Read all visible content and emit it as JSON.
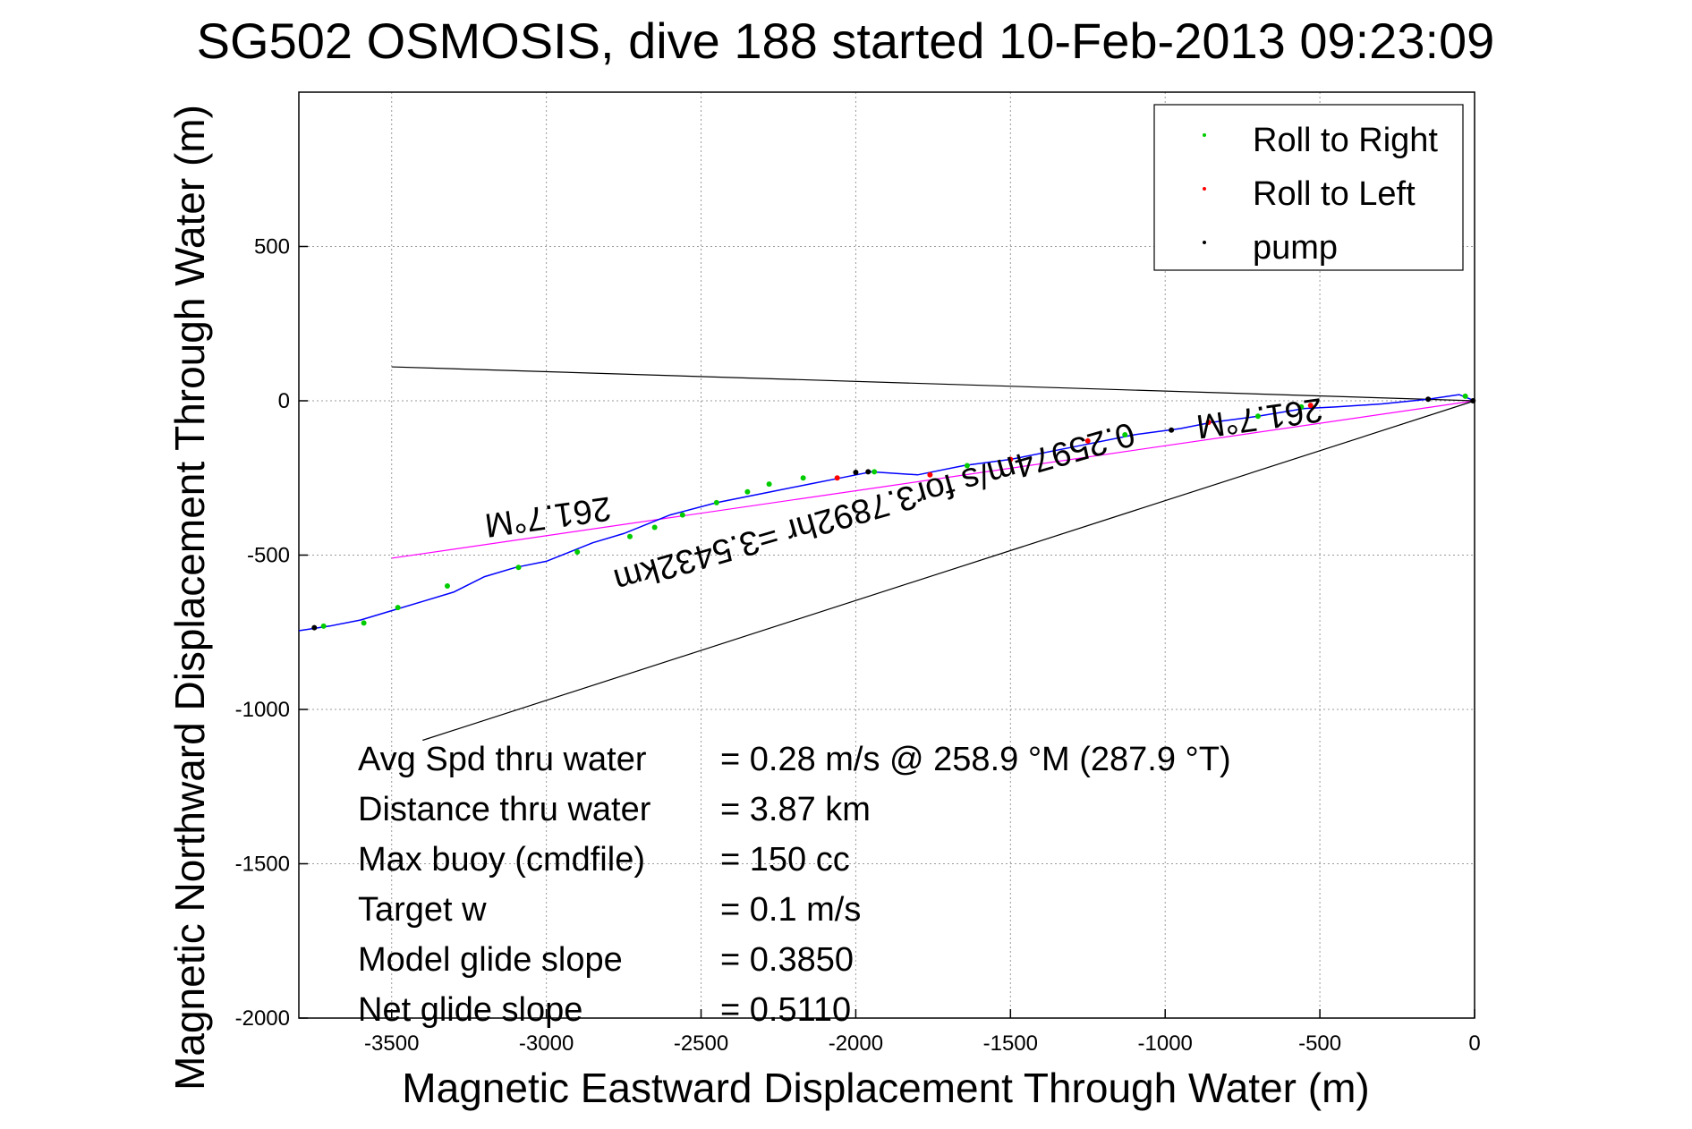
{
  "chart_data": {
    "type": "line",
    "title": "SG502 OSMOSIS, dive 188 started 10-Feb-2013 09:23:09",
    "xlabel": "Magnetic Eastward Displacement Through Water (m)",
    "ylabel": "Magnetic Northward Displacement Through Water (m)",
    "xlim": [
      -3800,
      0
    ],
    "ylim": [
      -2000,
      1000
    ],
    "xticks": [
      -3500,
      -3000,
      -2500,
      -2000,
      -1500,
      -1000,
      -500,
      0
    ],
    "yticks": [
      -2000,
      -1500,
      -1000,
      -500,
      0,
      500
    ],
    "xtick_labels": [
      "-3500",
      "-3000",
      "-2500",
      "-2000",
      "-1500",
      "-1000",
      "-500",
      "0"
    ],
    "ytick_labels": [
      "-2000",
      "-1500",
      "-1000",
      "-500",
      "0",
      "500"
    ],
    "grid": true,
    "legend": {
      "position": "top-right",
      "entries": [
        {
          "name": "Roll to Right",
          "color": "#00cc00"
        },
        {
          "name": "Roll to Left",
          "color": "#ff0000"
        },
        {
          "name": "pump",
          "color": "#000000"
        }
      ]
    },
    "track": {
      "color": "#0000ff",
      "x": [
        0,
        -50,
        -150,
        -300,
        -450,
        -550,
        -700,
        -850,
        -950,
        -1100,
        -1300,
        -1500,
        -1650,
        -1800,
        -1950,
        -2050,
        -2150,
        -2300,
        -2450,
        -2600,
        -2750,
        -2850,
        -3000,
        -3100,
        -3200,
        -3300,
        -3400,
        -3500,
        -3600,
        -3700,
        -3800
      ],
      "y": [
        0,
        20,
        5,
        -10,
        -20,
        -25,
        -50,
        -70,
        -90,
        -110,
        -150,
        -190,
        -210,
        -240,
        -230,
        -250,
        -270,
        -300,
        -330,
        -370,
        -430,
        -460,
        -520,
        -540,
        -570,
        -620,
        -650,
        -680,
        -710,
        -730,
        -745
      ]
    },
    "roll_right_points": {
      "color": "#00cc00",
      "x": [
        -30,
        -560,
        -700,
        -1130,
        -1640,
        -1940,
        -2170,
        -2280,
        -2350,
        -2450,
        -2560,
        -2650,
        -2730,
        -2900,
        -3090,
        -3320,
        -3480,
        -3590,
        -3720
      ],
      "y": [
        15,
        -20,
        -50,
        -110,
        -210,
        -230,
        -250,
        -270,
        -295,
        -330,
        -370,
        -410,
        -440,
        -490,
        -540,
        -600,
        -670,
        -720,
        -730
      ]
    },
    "roll_left_points": {
      "color": "#ff0000",
      "x": [
        -530,
        -860,
        -1250,
        -1500,
        -1760,
        -2060
      ],
      "y": [
        -15,
        -70,
        -130,
        -190,
        -240,
        -250
      ]
    },
    "pump_points": {
      "color": "#000000",
      "x": [
        -5,
        -150,
        -980,
        -1960,
        -2000,
        -3750
      ],
      "y": [
        0,
        5,
        -95,
        -230,
        -232,
        -735
      ]
    },
    "reference_lines": [
      {
        "name": "heading-line",
        "color": "#ff00ff",
        "x": [
          0,
          -3500
        ],
        "y": [
          0,
          -510
        ]
      },
      {
        "name": "start-ray-line",
        "color": "#000000",
        "x": [
          0,
          -3500
        ],
        "y": [
          0,
          110
        ]
      },
      {
        "name": "end-ray-line",
        "color": "#000000",
        "x": [
          0,
          -3400
        ],
        "y": [
          0,
          -1100
        ]
      }
    ],
    "flipped_labels": [
      {
        "text": "261.7°M",
        "x": -700,
        "y": -20,
        "angle": 172
      },
      {
        "text": "0.2597​4m/s for3.7892hr =3.5432km",
        "x": -1950,
        "y": -310,
        "angle": 164
      },
      {
        "text": "261.7°M",
        "x": -3000,
        "y": -340,
        "angle": 172
      }
    ],
    "annotations": [
      {
        "label": "Avg Spd thru water",
        "value": "=  0.28 m/s @ 258.9 °M (287.9 °T)"
      },
      {
        "label": "Distance thru water",
        "value": "=  3.87 km"
      },
      {
        "label": "Max buoy (cmdfile)",
        "value": "= 150 cc"
      },
      {
        "label": "Target w",
        "value": "= 0.1 m/s"
      },
      {
        "label": "Model glide slope",
        "value": "= 0.3850"
      },
      {
        "label": "Net glide slope",
        "value": "= 0.5110"
      }
    ]
  }
}
